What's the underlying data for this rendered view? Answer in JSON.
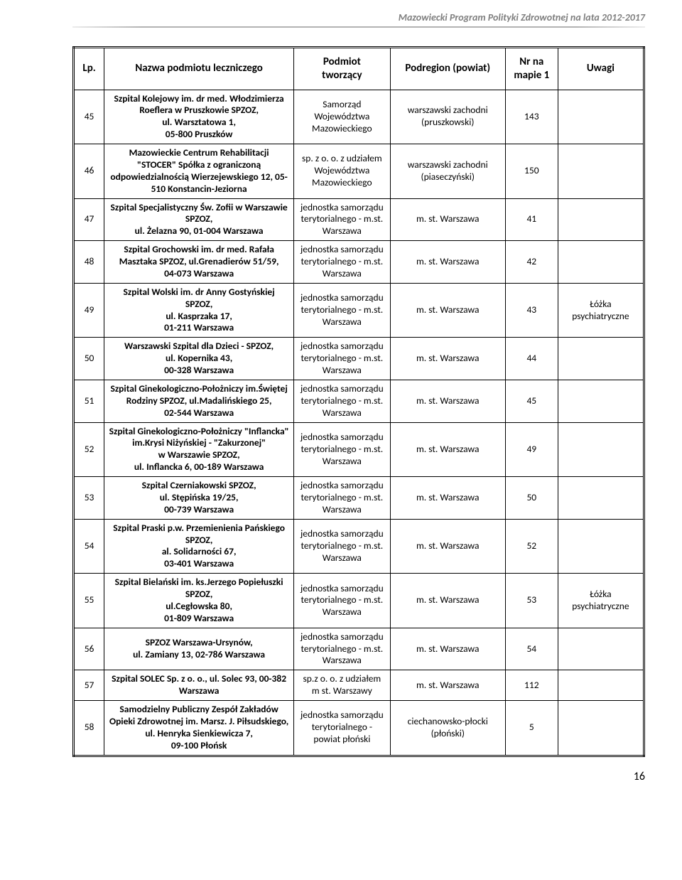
{
  "header": "Mazowiecki Program Polityki Zdrowotnej na lata 2012-2017",
  "page_number": "16",
  "columns": {
    "lp": "Lp.",
    "nazwa": "Nazwa podmiotu leczniczego",
    "podmiot_l1": "Podmiot",
    "podmiot_l2": "tworzący",
    "podregion": "Podregion (powiat)",
    "nr_l1": "Nr na",
    "nr_l2": "mapie 1",
    "uwagi": "Uwagi"
  },
  "rows": [
    {
      "lp": "45",
      "nazwa": "Szpital Kolejowy im. dr med. Włodzimierza Roeflera w Pruszkowie SPZOZ,\nul. Warsztatowa 1,\n05-800 Pruszków",
      "podmiot": "Samorząd Województwa Mazowieckiego",
      "podregion": "warszawski zachodni (pruszkowski)",
      "nr": "143",
      "uwagi": ""
    },
    {
      "lp": "46",
      "nazwa": "Mazowieckie Centrum Rehabilitacji \"STOCER\" Spółka z ograniczoną odpowiedzialnością Wierzejewskiego 12,             05-510 Konstancin-Jeziorna",
      "podmiot": "sp. z o. o. z udziałem Województwa Mazowieckiego",
      "podregion": "warszawski zachodni (piaseczyński)",
      "nr": "150",
      "uwagi": ""
    },
    {
      "lp": "47",
      "nazwa": "Szpital Specjalistyczny Św. Zofii w Warszawie SPZOZ,\nul. Żelazna 90, 01-004 Warszawa",
      "podmiot": "jednostka samorządu terytorialnego - m.st. Warszawa",
      "podregion": "m. st. Warszawa",
      "nr": "41",
      "uwagi": ""
    },
    {
      "lp": "48",
      "nazwa": "Szpital Grochowski im. dr med. Rafała Masztaka SPZOZ, ul.Grenadierów 51/59,\n04-073 Warszawa",
      "podmiot": "jednostka samorządu terytorialnego - m.st. Warszawa",
      "podregion": "m. st. Warszawa",
      "nr": "42",
      "uwagi": ""
    },
    {
      "lp": "49",
      "nazwa": "Szpital Wolski im. dr Anny Gostyńskiej SPZOZ,\nul. Kasprzaka 17,\n01-211 Warszawa",
      "podmiot": "jednostka samorządu terytorialnego - m.st. Warszawa",
      "podregion": "m. st. Warszawa",
      "nr": "43",
      "uwagi": "Łóżka psychiatryczne"
    },
    {
      "lp": "50",
      "nazwa": "Warszawski Szpital dla Dzieci - SPZOZ,\nul. Kopernika 43,\n00-328 Warszawa",
      "podmiot": "jednostka samorządu terytorialnego - m.st. Warszawa",
      "podregion": "m. st. Warszawa",
      "nr": "44",
      "uwagi": ""
    },
    {
      "lp": "51",
      "nazwa": "Szpital Ginekologiczno-Położniczy im.Świętej Rodziny SPZOZ, ul.Madalińskiego 25,\n02-544 Warszawa",
      "podmiot": "jednostka samorządu terytorialnego - m.st. Warszawa",
      "podregion": "m. st. Warszawa",
      "nr": "45",
      "uwagi": ""
    },
    {
      "lp": "52",
      "nazwa": "Szpital Ginekologiczno-Położniczy \"Inflancka\" im.Krysi Niżyńskiej - \"Zakurzonej\"\nw Warszawie SPZOZ,\nul. Inflancka 6, 00-189 Warszawa",
      "podmiot": "jednostka samorządu terytorialnego - m.st. Warszawa",
      "podregion": "m. st. Warszawa",
      "nr": "49",
      "uwagi": ""
    },
    {
      "lp": "53",
      "nazwa": "Szpital Czerniakowski SPZOZ,\nul. Stępińska 19/25,\n00-739 Warszawa",
      "podmiot": "jednostka samorządu terytorialnego - m.st. Warszawa",
      "podregion": "m. st. Warszawa",
      "nr": "50",
      "uwagi": ""
    },
    {
      "lp": "54",
      "nazwa": "Szpital Praski p.w. Przemienienia Pańskiego SPZOZ,\nal. Solidarności 67,\n03-401 Warszawa",
      "podmiot": "jednostka samorządu terytorialnego - m.st. Warszawa",
      "podregion": "m. st. Warszawa",
      "nr": "52",
      "uwagi": ""
    },
    {
      "lp": "55",
      "nazwa": "Szpital Bielański im. ks.Jerzego Popiełuszki SPZOZ,\nul.Cegłowska 80,\n01-809 Warszawa",
      "podmiot": "jednostka samorządu terytorialnego - m.st. Warszawa",
      "podregion": "m. st. Warszawa",
      "nr": "53",
      "uwagi": "Łóżka psychiatryczne"
    },
    {
      "lp": "56",
      "nazwa": "SPZOZ Warszawa-Ursynów,\nul. Zamiany 13, 02-786 Warszawa",
      "podmiot": "jednostka samorządu terytorialnego - m.st. Warszawa",
      "podregion": "m. st. Warszawa",
      "nr": "54",
      "uwagi": ""
    },
    {
      "lp": "57",
      "nazwa": "Szpital SOLEC Sp. z o. o., ul. Solec 93, 00-382 Warszawa",
      "podmiot": "sp.z o. o. z udziałem  m st. Warszawy",
      "podregion": "m. st. Warszawa",
      "nr": "112",
      "uwagi": ""
    },
    {
      "lp": "58",
      "nazwa": "Samodzielny Publiczny Zespół Zakładów Opieki Zdrowotnej im. Marsz. J. Piłsudskiego,\nul. Henryka Sienkiewicza 7,\n09-100 Płońsk",
      "podmiot": "jednostka samorządu terytorialnego - powiat płoński",
      "podregion": "ciechanowsko-płocki (płoński)",
      "nr": "5",
      "uwagi": ""
    }
  ]
}
